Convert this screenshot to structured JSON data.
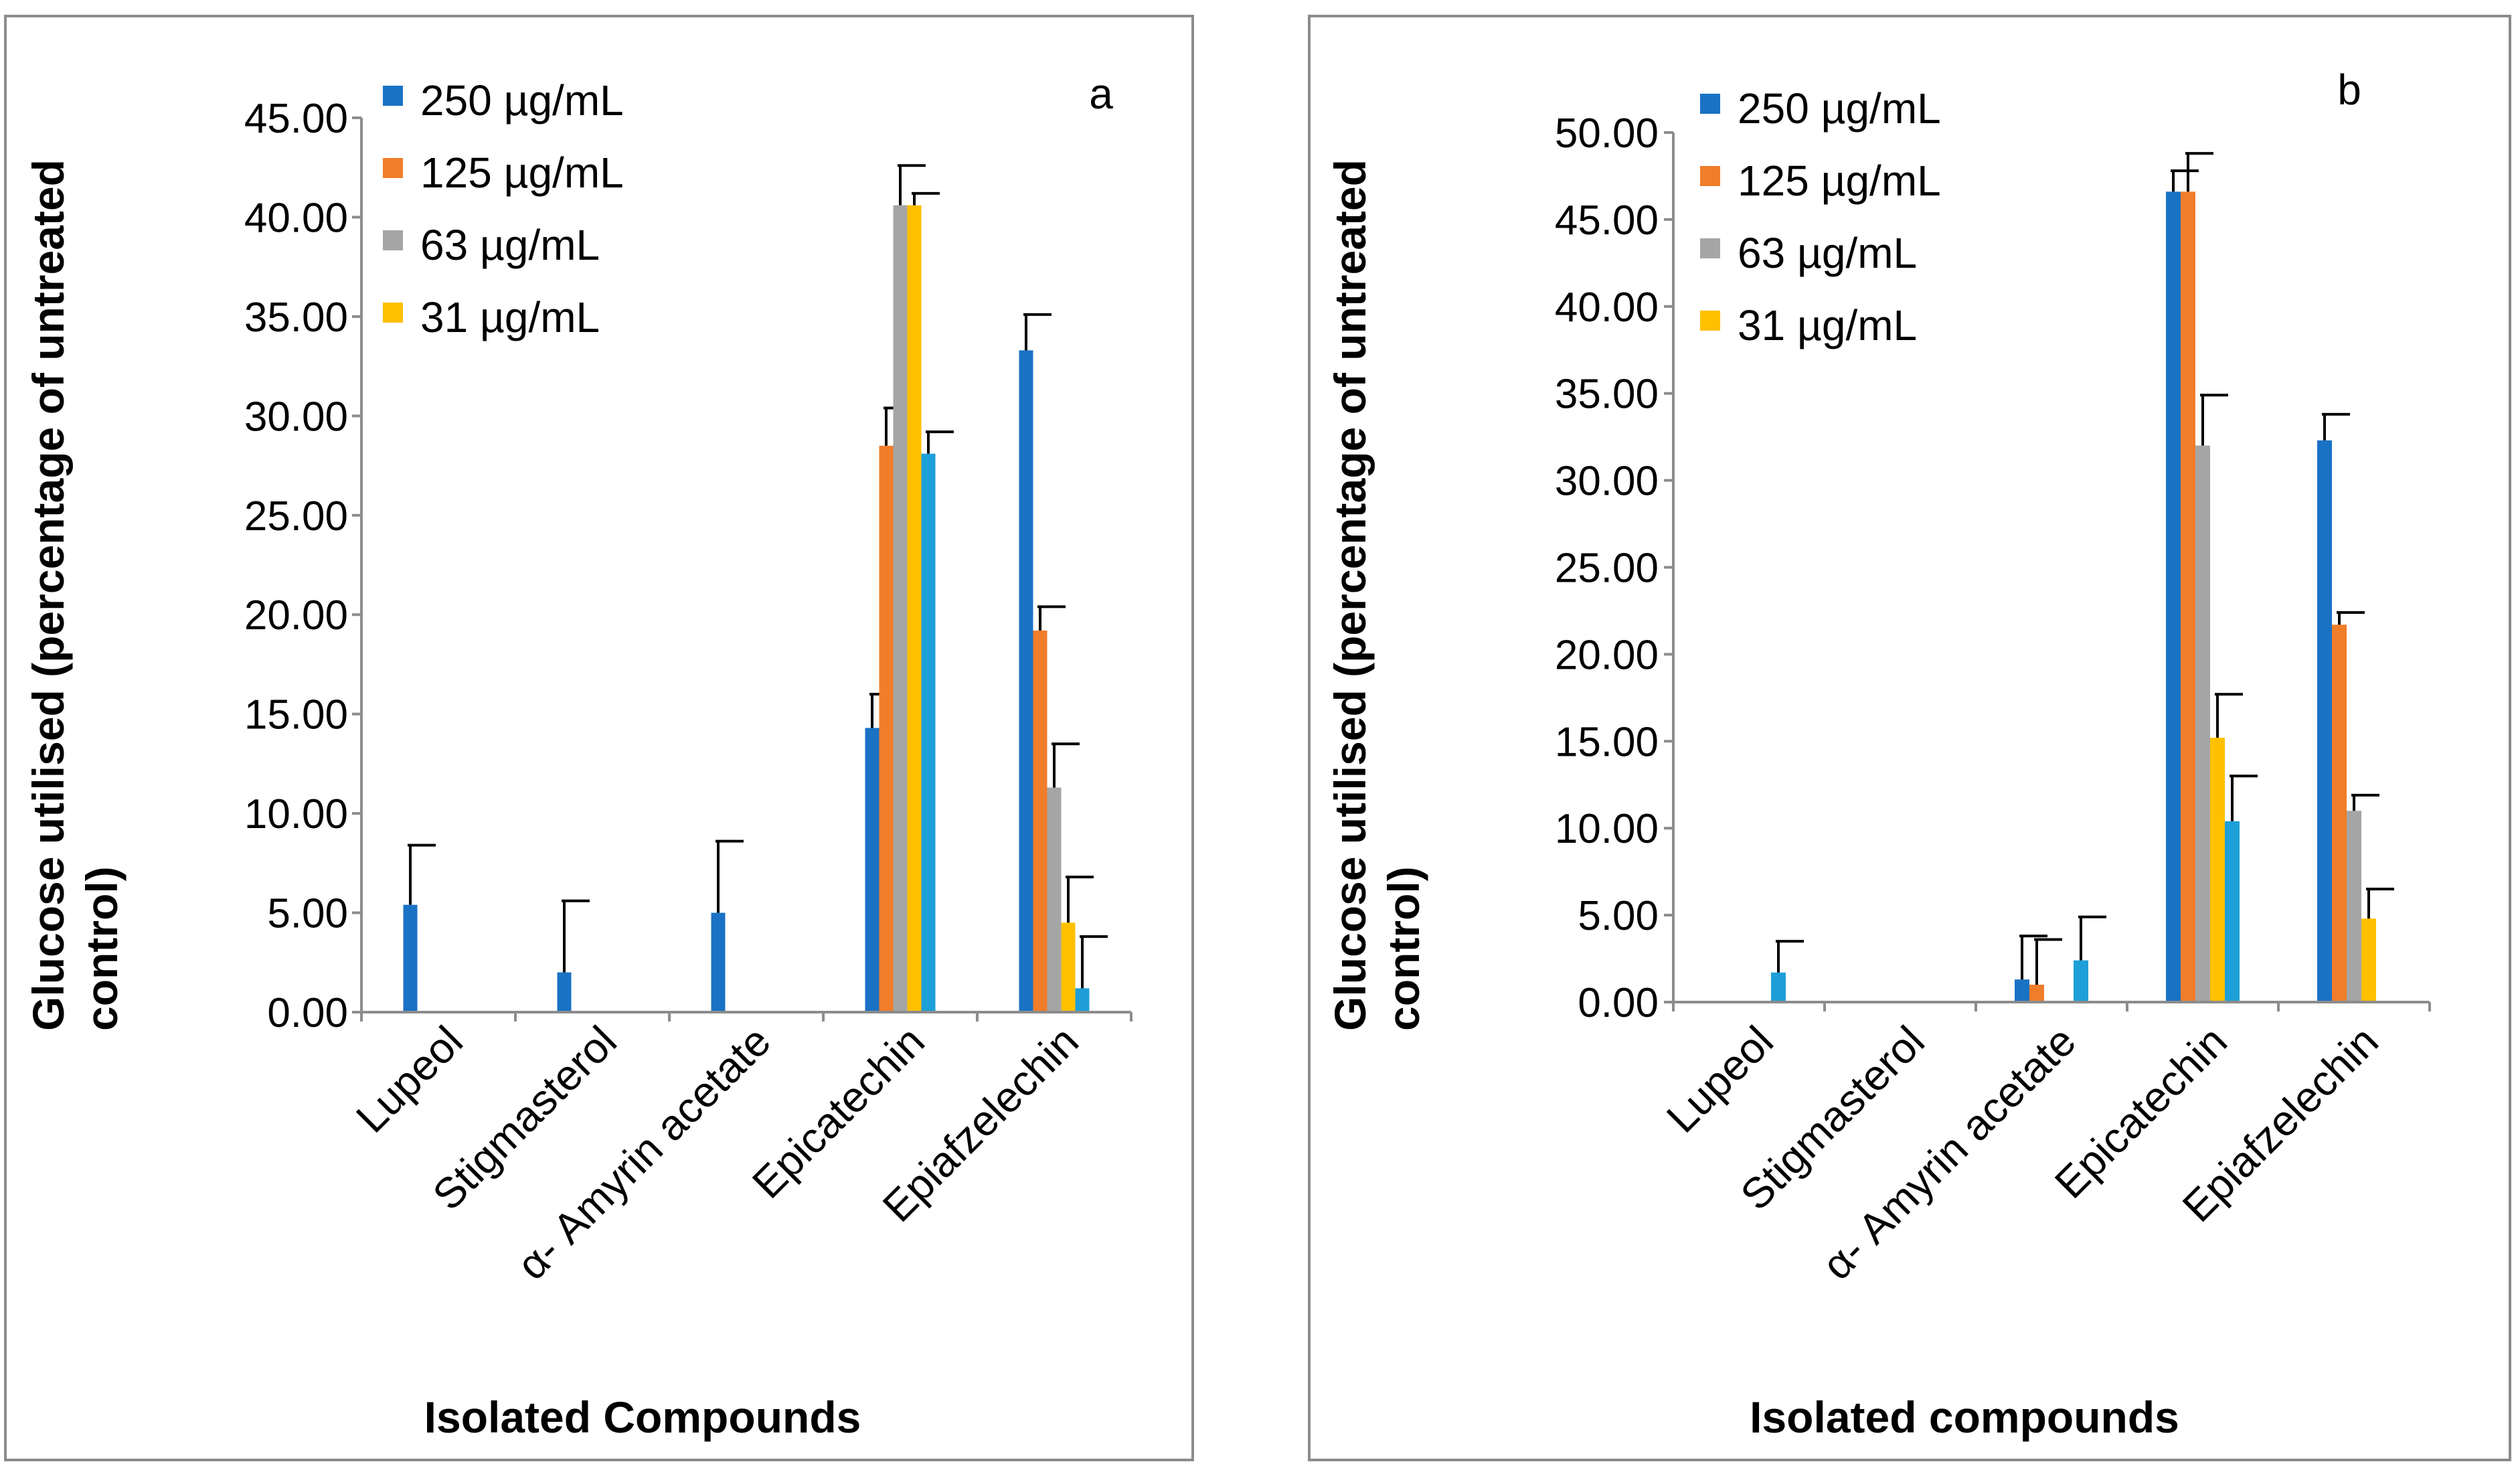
{
  "chart_data": [
    {
      "panel": "a",
      "type": "bar",
      "title": "",
      "panel_label": "a",
      "ylabel": "Glucose utilised (percentage of untreated control)",
      "ylabel_lines": [
        "Glucose utilised (percentage of untreated",
        "control)"
      ],
      "xlabel": "Isolated Compounds",
      "ylim": [
        0,
        45
      ],
      "yticks": [
        "0.00",
        "5.00",
        "10.00",
        "15.00",
        "20.00",
        "25.00",
        "30.00",
        "35.00",
        "40.00",
        "45.00"
      ],
      "categories": [
        "Lupeol",
        "Stigmasterol",
        "α- Amyrin acetate",
        "Epicatechin",
        "Epiafzelechin"
      ],
      "legend_position": "top-left",
      "series": [
        {
          "name": "250 µg/mL",
          "color": "#1a72c4",
          "values": [
            5.4,
            2.0,
            5.0,
            14.3,
            33.3
          ],
          "errors": [
            3.0,
            3.6,
            3.6,
            1.7,
            1.8
          ]
        },
        {
          "name": "125 µg/mL",
          "color": "#f07d2a",
          "values": [
            null,
            null,
            null,
            28.5,
            19.2
          ],
          "errors": [
            null,
            null,
            null,
            1.9,
            1.2
          ]
        },
        {
          "name": "63 µg/mL",
          "color": "#a5a5a5",
          "values": [
            null,
            null,
            null,
            40.6,
            11.3
          ],
          "errors": [
            null,
            null,
            null,
            2.0,
            2.2
          ]
        },
        {
          "name": "31 µg/mL",
          "color": "#ffc000",
          "values": [
            null,
            null,
            null,
            40.6,
            4.5
          ],
          "errors": [
            null,
            null,
            null,
            0.6,
            2.3
          ]
        },
        {
          "name": "",
          "color": "#1e9fd8",
          "values": [
            null,
            null,
            null,
            28.1,
            1.2
          ],
          "errors": [
            null,
            null,
            null,
            1.1,
            2.6
          ]
        }
      ]
    },
    {
      "panel": "b",
      "type": "bar",
      "title": "",
      "panel_label": "b",
      "ylabel": "Glucose utilised (percentage of untreated control)",
      "ylabel_lines": [
        "Glucose utilised (percentage of untreated",
        "control)"
      ],
      "xlabel": "Isolated compounds",
      "ylim": [
        0,
        50
      ],
      "yticks": [
        "0.00",
        "5.00",
        "10.00",
        "15.00",
        "20.00",
        "25.00",
        "30.00",
        "35.00",
        "40.00",
        "45.00",
        "50.00"
      ],
      "categories": [
        "Lupeol",
        "Stigmasterol",
        "α- Amyrin acetate",
        "Epicatechin",
        "Epiafzelechin"
      ],
      "legend_position": "top-left",
      "series": [
        {
          "name": "250 µg/mL",
          "color": "#1a72c4",
          "values": [
            null,
            null,
            1.3,
            46.6,
            32.3
          ],
          "errors": [
            null,
            null,
            2.5,
            1.2,
            1.5
          ]
        },
        {
          "name": "125 µg/mL",
          "color": "#f07d2a",
          "values": [
            null,
            null,
            1.0,
            46.6,
            21.7
          ],
          "errors": [
            null,
            null,
            2.6,
            2.2,
            0.7
          ]
        },
        {
          "name": "63 µg/mL",
          "color": "#a5a5a5",
          "values": [
            null,
            null,
            null,
            32.0,
            11.0
          ],
          "errors": [
            null,
            null,
            null,
            2.9,
            0.9
          ]
        },
        {
          "name": "31 µg/mL",
          "color": "#ffc000",
          "values": [
            null,
            null,
            null,
            15.2,
            4.8
          ],
          "errors": [
            null,
            null,
            null,
            2.5,
            1.7
          ]
        },
        {
          "name": "",
          "color": "#1e9fd8",
          "values": [
            1.7,
            null,
            2.4,
            10.4,
            null
          ],
          "errors": [
            1.8,
            null,
            2.5,
            2.6,
            null
          ]
        }
      ]
    }
  ]
}
